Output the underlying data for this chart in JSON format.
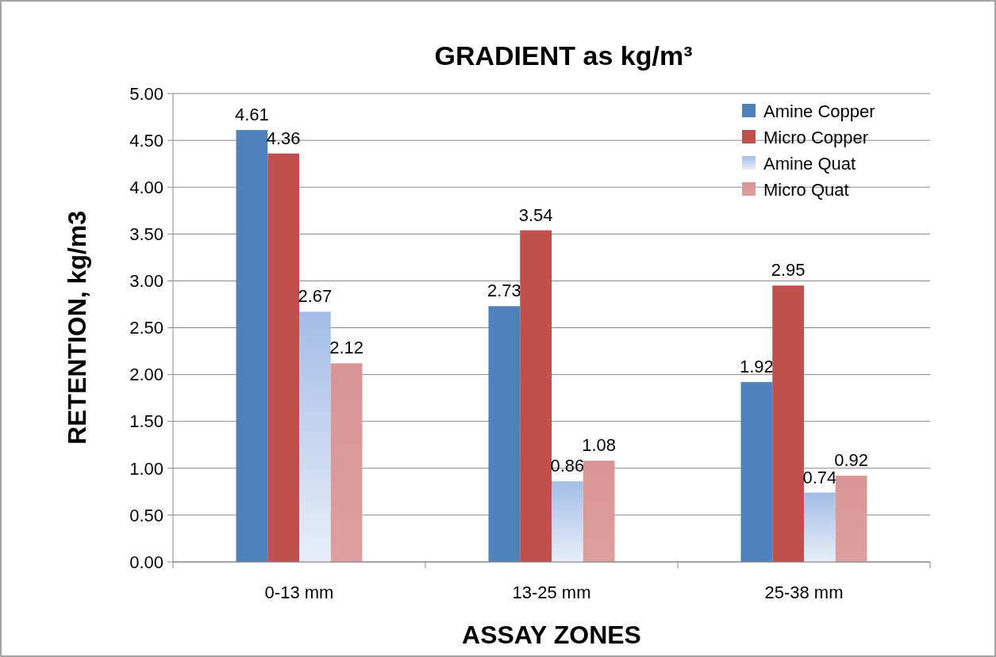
{
  "chart_data": {
    "type": "bar",
    "title": "GRADIENT as kg/m³",
    "xlabel": "ASSAY ZONES",
    "ylabel": "RETENTION, kg/m3",
    "categories": [
      "0-13 mm",
      "13-25 mm",
      "25-38 mm"
    ],
    "series": [
      {
        "name": "Amine Copper",
        "color": "#4f81bd",
        "values": [
          4.61,
          2.73,
          1.92
        ]
      },
      {
        "name": "Micro Copper",
        "color": "#c0504d",
        "values": [
          4.36,
          3.54,
          2.95
        ]
      },
      {
        "name": "Amine Quat",
        "color": "#a4bde6",
        "values": [
          2.67,
          0.86,
          0.74
        ]
      },
      {
        "name": "Micro Quat",
        "color": "#d99594",
        "values": [
          2.12,
          1.08,
          0.92
        ]
      }
    ],
    "ylim": [
      0,
      5
    ],
    "yticks": [
      {
        "value": 0,
        "label": "0.00"
      },
      {
        "value": 0.5,
        "label": "0.50"
      },
      {
        "value": 1,
        "label": "1.00"
      },
      {
        "value": 1.5,
        "label": "1.50"
      },
      {
        "value": 2,
        "label": "2.00"
      },
      {
        "value": 2.5,
        "label": "2.50"
      },
      {
        "value": 3,
        "label": "3.00"
      },
      {
        "value": 3.5,
        "label": "3.50"
      },
      {
        "value": 4,
        "label": "4.00"
      },
      {
        "value": 4.5,
        "label": "4.50"
      },
      {
        "value": 5,
        "label": "5.00"
      }
    ],
    "grid": "y",
    "legend": "top right",
    "data_labels": true
  }
}
